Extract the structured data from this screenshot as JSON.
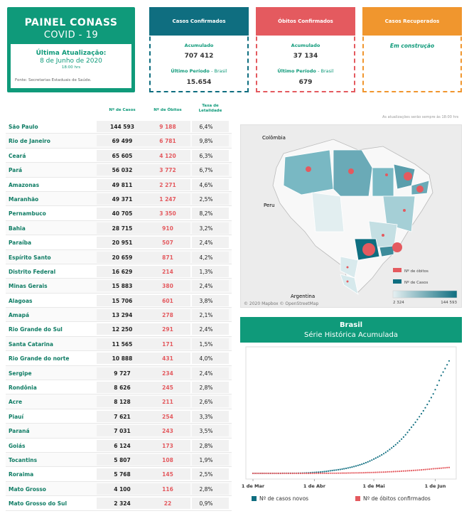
{
  "title": {
    "main": "PAINEL CONASS",
    "sub": "COVID - 19",
    "update_label": "Última Atualização:",
    "update_date": "8 de Junho de 2020",
    "update_time": "18:00 hrs",
    "source": "Fonte: Secretarias Estaduais de Saúde."
  },
  "cards": {
    "confirmed": {
      "title": "Casos Confirmados",
      "acc_label": "Acumulado",
      "acc_value": "707 412",
      "last_label": "Último Período",
      "last_suffix": "- Brasil",
      "last_value": "15.654",
      "color": "#0f6e80"
    },
    "deaths": {
      "title": "Óbitos Confirmados",
      "acc_label": "Acumulado",
      "acc_value": "37 134",
      "last_label": "Último Período",
      "last_suffix": "- Brasil",
      "last_value": "679",
      "color": "#e45a5f"
    },
    "recovered": {
      "title": "Casos Recuperados",
      "status": "Em construção",
      "color": "#f0962e"
    }
  },
  "table": {
    "headers": {
      "cases": "Nº de Casos",
      "deaths": "Nº de Óbitos",
      "rate": "Taxa de Letalidade"
    },
    "rows": [
      {
        "state": "São Paulo",
        "cases": "144 593",
        "deaths": "9 188",
        "rate": "6,4%"
      },
      {
        "state": "Rio de Janeiro",
        "cases": "69 499",
        "deaths": "6 781",
        "rate": "9,8%"
      },
      {
        "state": "Ceará",
        "cases": "65 605",
        "deaths": "4 120",
        "rate": "6,3%"
      },
      {
        "state": "Pará",
        "cases": "56 032",
        "deaths": "3 772",
        "rate": "6,7%"
      },
      {
        "state": "Amazonas",
        "cases": "49 811",
        "deaths": "2 271",
        "rate": "4,6%"
      },
      {
        "state": "Maranhão",
        "cases": "49 371",
        "deaths": "1 247",
        "rate": "2,5%"
      },
      {
        "state": "Pernambuco",
        "cases": "40 705",
        "deaths": "3 350",
        "rate": "8,2%"
      },
      {
        "state": "Bahia",
        "cases": "28 715",
        "deaths": "910",
        "rate": "3,2%"
      },
      {
        "state": "Paraíba",
        "cases": "20 951",
        "deaths": "507",
        "rate": "2,4%"
      },
      {
        "state": "Espírito Santo",
        "cases": "20 659",
        "deaths": "871",
        "rate": "4,2%"
      },
      {
        "state": "Distrito Federal",
        "cases": "16 629",
        "deaths": "214",
        "rate": "1,3%"
      },
      {
        "state": "Minas Gerais",
        "cases": "15 883",
        "deaths": "380",
        "rate": "2,4%"
      },
      {
        "state": "Alagoas",
        "cases": "15 706",
        "deaths": "601",
        "rate": "3,8%"
      },
      {
        "state": "Amapá",
        "cases": "13 294",
        "deaths": "278",
        "rate": "2,1%"
      },
      {
        "state": "Rio Grande do Sul",
        "cases": "12 250",
        "deaths": "291",
        "rate": "2,4%"
      },
      {
        "state": "Santa Catarina",
        "cases": "11 565",
        "deaths": "171",
        "rate": "1,5%"
      },
      {
        "state": "Rio Grande do norte",
        "cases": "10 888",
        "deaths": "431",
        "rate": "4,0%"
      },
      {
        "state": "Sergipe",
        "cases": "9 727",
        "deaths": "234",
        "rate": "2,4%"
      },
      {
        "state": "Rondônia",
        "cases": "8 626",
        "deaths": "245",
        "rate": "2,8%"
      },
      {
        "state": "Acre",
        "cases": "8 128",
        "deaths": "211",
        "rate": "2,6%"
      },
      {
        "state": "Piauí",
        "cases": "7 621",
        "deaths": "254",
        "rate": "3,3%"
      },
      {
        "state": "Paraná",
        "cases": "7 031",
        "deaths": "243",
        "rate": "3,5%"
      },
      {
        "state": "Goiás",
        "cases": "6 124",
        "deaths": "173",
        "rate": "2,8%"
      },
      {
        "state": "Tocantins",
        "cases": "5 807",
        "deaths": "108",
        "rate": "1,9%"
      },
      {
        "state": "Roraima",
        "cases": "5 768",
        "deaths": "145",
        "rate": "2,5%"
      },
      {
        "state": "Mato Grosso",
        "cases": "4 100",
        "deaths": "116",
        "rate": "2,8%"
      },
      {
        "state": "Mato Grosso do Sul",
        "cases": "2 324",
        "deaths": "22",
        "rate": "0,9%"
      }
    ]
  },
  "map": {
    "note": "As atualizações serão sempre às 18:00 hrs",
    "labels": {
      "colombia": "Colômbia",
      "peru": "Peru",
      "argentina": "Argentina"
    },
    "legend_deaths": "Nº de óbitos",
    "legend_cases": "Nº de Casos",
    "scale_min": "2 324",
    "scale_max": "144 593",
    "copyright": "© 2020 Mapbox © OpenStreetMap",
    "color_low": "#e6f0f2",
    "color_high": "#0f6e80",
    "death_color": "#e45a5f"
  },
  "chart_data": {
    "type": "scatter",
    "title": "Brasil",
    "subtitle": "Série Histórica Acumulada",
    "x_ticks": [
      "1 de Mar",
      "1 de Abr",
      "1 de Mai",
      "1 de Jun"
    ],
    "series": [
      {
        "name": "Nº de casos novos",
        "color": "#0f6e80",
        "points": [
          [
            "2020-03-01",
            0
          ],
          [
            "2020-03-15",
            200
          ],
          [
            "2020-04-01",
            6000
          ],
          [
            "2020-04-10",
            18000
          ],
          [
            "2020-04-20",
            40000
          ],
          [
            "2020-05-01",
            90000
          ],
          [
            "2020-05-10",
            160000
          ],
          [
            "2020-05-20",
            290000
          ],
          [
            "2020-05-25",
            375000
          ],
          [
            "2020-05-31",
            500000
          ],
          [
            "2020-06-04",
            615000
          ],
          [
            "2020-06-08",
            707412
          ]
        ]
      },
      {
        "name": "Nº de óbitos confirmados",
        "color": "#e45a5f",
        "points": [
          [
            "2020-03-01",
            0
          ],
          [
            "2020-04-01",
            200
          ],
          [
            "2020-04-15",
            1700
          ],
          [
            "2020-05-01",
            6000
          ],
          [
            "2020-05-15",
            14000
          ],
          [
            "2020-05-31",
            29000
          ],
          [
            "2020-06-08",
            37134
          ]
        ]
      }
    ]
  }
}
